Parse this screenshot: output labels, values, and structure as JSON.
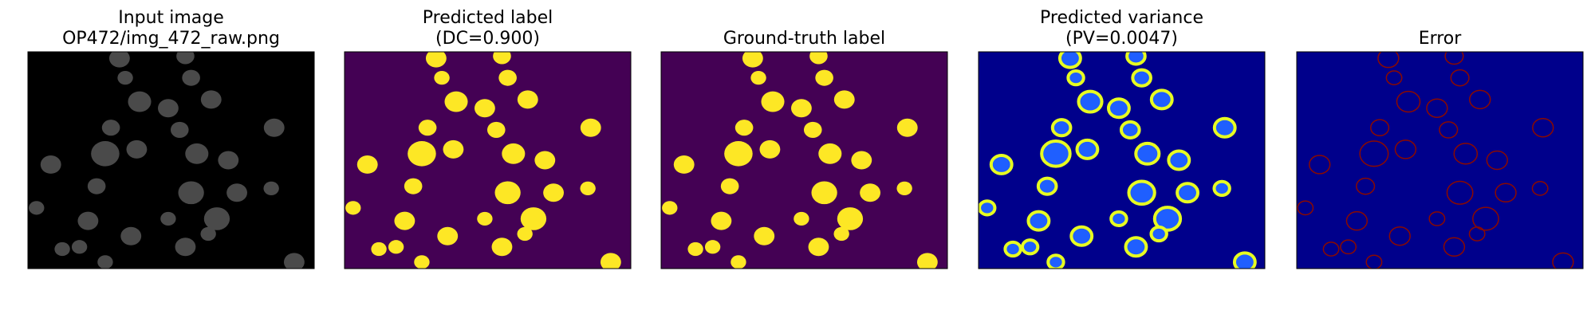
{
  "panels": [
    {
      "title": [
        "Input image",
        "OP472/img_472_raw.png"
      ]
    },
    {
      "title": [
        "Predicted label",
        "(DC=0.900)"
      ]
    },
    {
      "title": [
        "Ground-truth label"
      ]
    },
    {
      "title": [
        "Predicted variance",
        "(PV=0.0047)"
      ]
    },
    {
      "title": [
        "Error"
      ]
    }
  ]
}
